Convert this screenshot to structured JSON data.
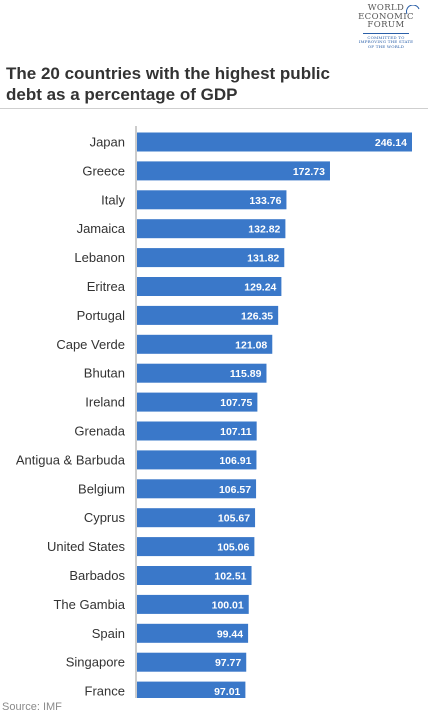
{
  "logo": {
    "line1": "WORLD",
    "line2": "ECONOMIC",
    "line3": "FORUM",
    "tag1": "COMMITTED TO",
    "tag2": "IMPROVING THE STATE",
    "tag3": "OF THE WORLD",
    "color": "#2a5fa8"
  },
  "title": "The 20 countries with the highest public debt as a percentage of GDP",
  "source": "Source: IMF",
  "colors": {
    "bar": "#3a78c9",
    "axis": "#999999"
  },
  "chart_data": {
    "type": "bar",
    "orientation": "horizontal",
    "title": "The 20 countries with the highest public debt as a percentage of GDP",
    "xlabel": "",
    "ylabel": "",
    "xlim": [
      0,
      250
    ],
    "grid": false,
    "categories": [
      "Japan",
      "Greece",
      "Italy",
      "Jamaica",
      "Lebanon",
      "Eritrea",
      "Portugal",
      "Cape Verde",
      "Bhutan",
      "Ireland",
      "Grenada",
      "Antigua & Barbuda",
      "Belgium",
      "Cyprus",
      "United States",
      "Barbados",
      "The Gambia",
      "Spain",
      "Singapore",
      "France"
    ],
    "values": [
      246.14,
      172.73,
      133.76,
      132.82,
      131.82,
      129.24,
      126.35,
      121.08,
      115.89,
      107.75,
      107.11,
      106.91,
      106.57,
      105.67,
      105.06,
      102.51,
      100.01,
      99.44,
      97.77,
      97.01
    ],
    "labels": [
      "246.14",
      "172.73",
      "133.76",
      "132.82",
      "131.82",
      "129.24",
      "126.35",
      "121.08",
      "115.89",
      "107.75",
      "107.11",
      "106.91",
      "106.57",
      "105.67",
      "105.06",
      "102.51",
      "100.01",
      "99.44",
      "97.77",
      "97.01"
    ]
  }
}
